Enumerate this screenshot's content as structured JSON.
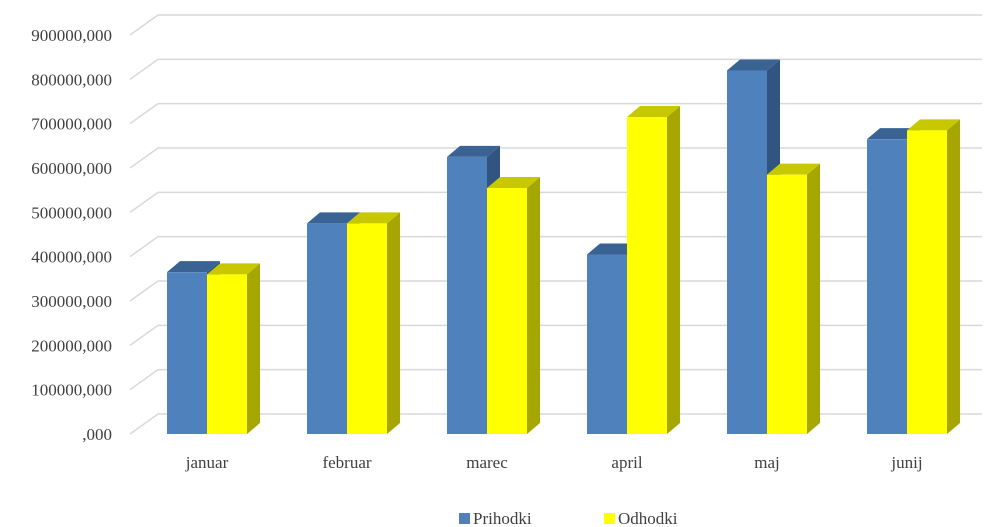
{
  "chart_data": {
    "type": "bar",
    "categories": [
      "januar",
      "februar",
      "marec",
      "april",
      "maj",
      "junij"
    ],
    "series": [
      {
        "name": "Prihodki",
        "values": [
          365000,
          475000,
          625000,
          405000,
          820000,
          665000
        ],
        "color": "#4F81BD",
        "side_color": "#2F5580",
        "top_color": "#3A6394"
      },
      {
        "name": "Odhodki",
        "values": [
          360000,
          475000,
          555000,
          715000,
          585000,
          685000
        ],
        "color": "#FFFF00",
        "side_color": "#A6A600",
        "top_color": "#C8C800"
      }
    ],
    "y_ticks": [
      {
        "value": 0,
        "label": ",000"
      },
      {
        "value": 100000,
        "label": "100000,000"
      },
      {
        "value": 200000,
        "label": "200000,000"
      },
      {
        "value": 300000,
        "label": "300000,000"
      },
      {
        "value": 400000,
        "label": "400000,000"
      },
      {
        "value": 500000,
        "label": "500000,000"
      },
      {
        "value": 600000,
        "label": "600000,000"
      },
      {
        "value": 700000,
        "label": "700000,000"
      },
      {
        "value": 800000,
        "label": "800000,000"
      },
      {
        "value": 900000,
        "label": "900000,000"
      }
    ],
    "ylim": [
      0,
      900000
    ],
    "grid": true,
    "legend_position": "bottom",
    "style": "3d-clustered-column"
  }
}
